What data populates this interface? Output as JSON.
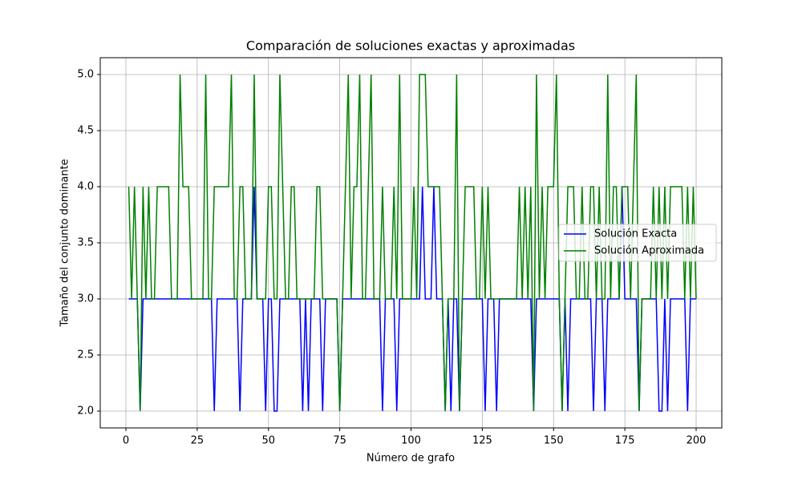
{
  "chart_data": {
    "type": "line",
    "title": "Comparación de soluciones exactas y aproximadas",
    "x_label": "Número de grafo",
    "y_label": "Tamaño del conjunto dominante",
    "x": [
      1,
      2,
      3,
      4,
      5,
      6,
      7,
      8,
      9,
      10,
      11,
      12,
      13,
      14,
      15,
      16,
      17,
      18,
      19,
      20,
      21,
      22,
      23,
      24,
      25,
      26,
      27,
      28,
      29,
      30,
      31,
      32,
      33,
      34,
      35,
      36,
      37,
      38,
      39,
      40,
      41,
      42,
      43,
      44,
      45,
      46,
      47,
      48,
      49,
      50,
      51,
      52,
      53,
      54,
      55,
      56,
      57,
      58,
      59,
      60,
      61,
      62,
      63,
      64,
      65,
      66,
      67,
      68,
      69,
      70,
      71,
      72,
      73,
      74,
      75,
      76,
      77,
      78,
      79,
      80,
      81,
      82,
      83,
      84,
      85,
      86,
      87,
      88,
      89,
      90,
      91,
      92,
      93,
      94,
      95,
      96,
      97,
      98,
      99,
      100,
      101,
      102,
      103,
      104,
      105,
      106,
      107,
      108,
      109,
      110,
      111,
      112,
      113,
      114,
      115,
      116,
      117,
      118,
      119,
      120,
      121,
      122,
      123,
      124,
      125,
      126,
      127,
      128,
      129,
      130,
      131,
      132,
      133,
      134,
      135,
      136,
      137,
      138,
      139,
      140,
      141,
      142,
      143,
      144,
      145,
      146,
      147,
      148,
      149,
      150,
      151,
      152,
      153,
      154,
      155,
      156,
      157,
      158,
      159,
      160,
      161,
      162,
      163,
      164,
      165,
      166,
      167,
      168,
      169,
      170,
      171,
      172,
      173,
      174,
      175,
      176,
      177,
      178,
      179,
      180,
      181,
      182,
      183,
      184,
      185,
      186,
      187,
      188,
      189,
      190,
      191,
      192,
      193,
      194,
      195,
      196,
      197,
      198,
      199,
      200
    ],
    "series": [
      {
        "name": "Solución Exacta",
        "color": "#0000ff",
        "values": [
          3,
          3,
          3,
          3,
          2,
          3,
          3,
          3,
          3,
          3,
          3,
          3,
          3,
          3,
          3,
          3,
          3,
          3,
          3,
          3,
          3,
          3,
          3,
          3,
          3,
          3,
          3,
          3,
          3,
          3,
          2,
          3,
          3,
          3,
          3,
          3,
          3,
          3,
          3,
          2,
          3,
          3,
          3,
          3,
          4,
          3,
          3,
          3,
          2,
          3,
          3,
          2,
          2,
          3,
          3,
          3,
          3,
          3,
          3,
          3,
          3,
          2,
          3,
          2,
          3,
          3,
          3,
          3,
          2,
          3,
          3,
          3,
          3,
          3,
          2,
          3,
          3,
          3,
          3,
          3,
          3,
          3,
          3,
          3,
          3,
          3,
          3,
          3,
          3,
          2,
          3,
          3,
          3,
          3,
          2,
          3,
          3,
          3,
          3,
          3,
          3,
          3,
          3,
          4,
          3,
          3,
          3,
          4,
          3,
          3,
          3,
          2,
          3,
          2,
          3,
          3,
          2,
          3,
          3,
          3,
          3,
          3,
          3,
          3,
          3,
          2,
          3,
          3,
          3,
          2,
          3,
          3,
          3,
          3,
          3,
          3,
          3,
          3,
          3,
          3,
          3,
          3,
          2,
          3,
          3,
          3,
          3,
          3,
          3,
          3,
          3,
          3,
          2,
          3,
          2,
          3,
          3,
          3,
          3,
          3,
          3,
          3,
          3,
          2,
          3,
          3,
          3,
          2,
          3,
          3,
          3,
          3,
          3,
          4,
          3,
          3,
          3,
          3,
          3,
          2,
          3,
          3,
          3,
          3,
          3,
          3,
          2,
          2,
          3,
          2,
          3,
          3,
          3,
          3,
          3,
          3,
          2,
          3,
          3,
          3
        ]
      },
      {
        "name": "Solución Aproximada",
        "color": "#008000",
        "values": [
          4,
          3,
          4,
          3,
          2,
          4,
          3,
          4,
          3,
          3,
          4,
          4,
          4,
          4,
          4,
          3,
          3,
          3,
          5,
          4,
          4,
          4,
          3,
          3,
          3,
          3,
          3,
          5,
          3,
          3,
          4,
          4,
          4,
          4,
          4,
          4,
          5,
          3,
          3,
          4,
          4,
          3,
          3,
          3,
          5,
          3,
          3,
          3,
          3,
          4,
          4,
          3,
          3,
          5,
          4,
          3,
          3,
          4,
          4,
          3,
          3,
          3,
          3,
          3,
          3,
          3,
          4,
          4,
          3,
          3,
          3,
          3,
          3,
          3,
          2,
          3,
          4,
          5,
          3,
          4,
          4,
          5,
          3,
          3,
          4,
          5,
          3,
          3,
          3,
          4,
          3,
          3,
          3,
          4,
          3,
          5,
          3,
          3,
          3,
          3,
          4,
          3,
          5,
          5,
          5,
          4,
          4,
          4,
          4,
          4,
          3,
          2,
          3,
          3,
          3,
          5,
          2,
          3,
          4,
          4,
          4,
          4,
          3,
          3,
          4,
          3,
          4,
          3,
          3,
          3,
          3,
          3,
          3,
          3,
          3,
          3,
          3,
          4,
          3,
          4,
          3,
          4,
          2,
          5,
          3,
          4,
          3,
          4,
          4,
          4,
          5,
          3,
          2,
          3,
          4,
          4,
          4,
          3,
          3,
          4,
          3,
          3,
          4,
          4,
          3,
          4,
          3,
          3,
          5,
          3,
          4,
          4,
          3,
          4,
          4,
          4,
          3,
          4,
          5,
          2,
          3,
          3,
          3,
          3,
          4,
          3,
          4,
          3,
          4,
          3,
          4,
          4,
          4,
          4,
          4,
          3,
          4,
          3,
          4,
          3
        ]
      }
    ],
    "xlim": [
      -9,
      209
    ],
    "ylim": [
      1.85,
      5.15
    ],
    "xticks": [
      0,
      25,
      50,
      75,
      100,
      125,
      150,
      175,
      200
    ],
    "yticks": [
      {
        "value": 2,
        "label": "2.0"
      },
      {
        "value": 2.5,
        "label": "2.5"
      },
      {
        "value": 3,
        "label": "3.0"
      },
      {
        "value": 3.5,
        "label": "3.5"
      },
      {
        "value": 4,
        "label": "4.0"
      },
      {
        "value": 4.5,
        "label": "4.5"
      },
      {
        "value": 5,
        "label": "5.0"
      }
    ],
    "grid": true,
    "legend": "center right"
  }
}
